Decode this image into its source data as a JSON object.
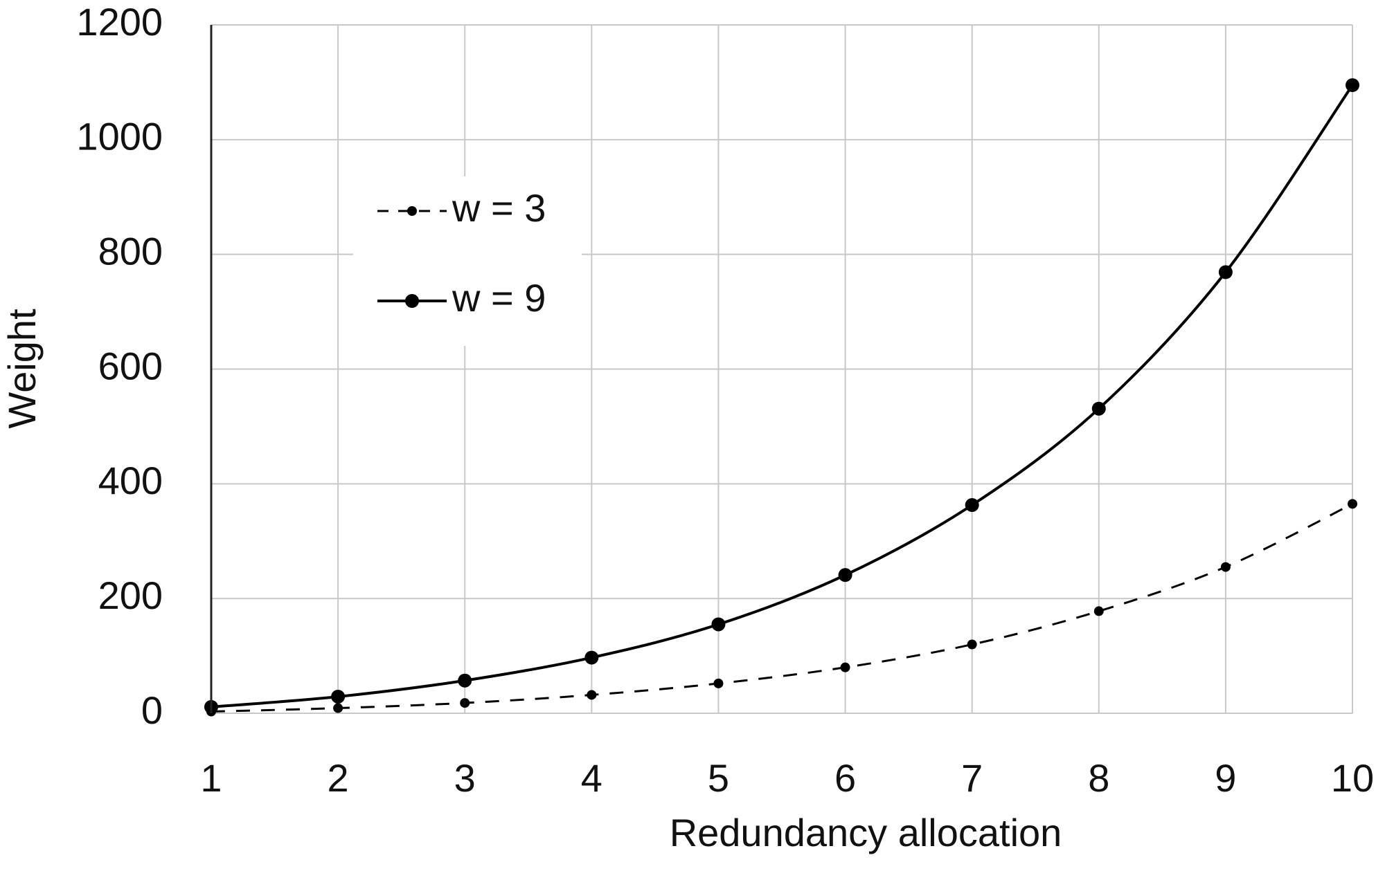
{
  "chart_data": {
    "type": "line",
    "x_label": "Redundancy allocation",
    "y_label": "Weight",
    "x": [
      1,
      2,
      3,
      4,
      5,
      6,
      7,
      8,
      9,
      10
    ],
    "xlim": [
      1,
      10
    ],
    "xticks": [
      1,
      2,
      3,
      4,
      5,
      6,
      7,
      8,
      9,
      10
    ],
    "ylim": [
      0,
      1200
    ],
    "yticks": [
      0,
      200,
      400,
      600,
      800,
      1000,
      1200
    ],
    "grid": true,
    "legend": "upper left",
    "series": [
      {
        "name": "w = 3",
        "color": "#000000",
        "line_style": "dashed",
        "values": [
          3,
          9,
          18,
          32,
          52,
          80,
          120,
          178,
          255,
          365
        ]
      },
      {
        "name": "w = 9",
        "color": "#000000",
        "line_style": "solid",
        "values": [
          11,
          29,
          57,
          97,
          155,
          241,
          363,
          531,
          769,
          1095
        ]
      }
    ]
  }
}
